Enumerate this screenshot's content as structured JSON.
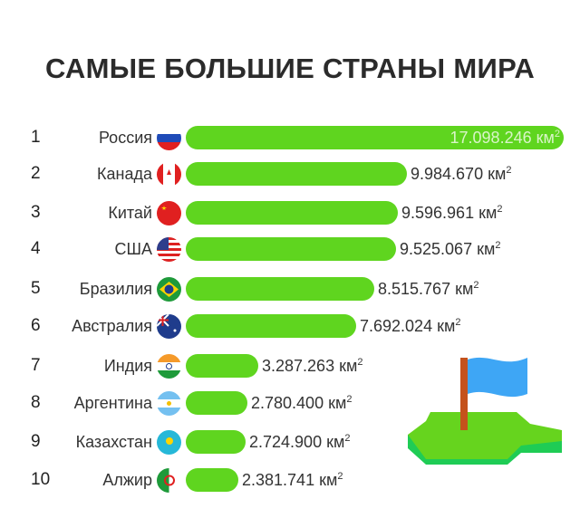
{
  "title": "САМЫЕ БОЛЬШИЕ СТРАНЫ МИРА",
  "unit": "км",
  "unit_sup": "2",
  "colors": {
    "bar": "#5fd51f",
    "title": "#2b2b2b"
  },
  "chart_data": {
    "type": "bar",
    "orientation": "horizontal",
    "title": "САМЫЕ БОЛЬШИЕ СТРАНЫ МИРА",
    "categories": [
      "Россия",
      "Канада",
      "Китай",
      "США",
      "Бразилия",
      "Австралия",
      "Индия",
      "Аргентина",
      "Казахстан",
      "Алжир"
    ],
    "ranks": [
      "1",
      "2",
      "3",
      "4",
      "5",
      "6",
      "7",
      "8",
      "9",
      "10"
    ],
    "values": [
      17098246,
      9984670,
      9596961,
      9525067,
      8515767,
      7692024,
      3287263,
      2780400,
      2724900,
      2381741
    ],
    "labels": [
      "17.098.246",
      "9.984.670",
      "9.596.961",
      "9.525.067",
      "8.515.767",
      "7.692.024",
      "3.287.263",
      "2.780.400",
      "2.724.900",
      "2.381.741"
    ],
    "flags": [
      "russia-flag",
      "canada-flag",
      "china-flag",
      "usa-flag",
      "brazil-flag",
      "australia-flag",
      "india-flag",
      "argentina-flag",
      "kazakhstan-flag",
      "algeria-flag"
    ],
    "xlim": [
      0,
      17098246
    ],
    "grid": false
  }
}
